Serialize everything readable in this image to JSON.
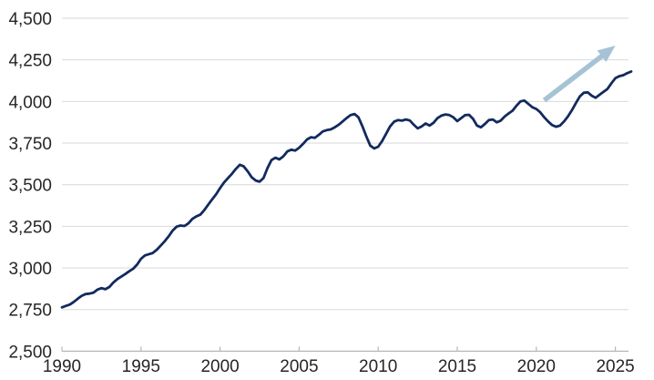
{
  "chart_data": {
    "type": "line",
    "title": "",
    "xlabel": "",
    "ylabel": "",
    "grid": "horizontal-gridlines",
    "legend": "none",
    "x_start": 1990,
    "x_step": 0.25,
    "x_end": 2026,
    "values": [
      2763,
      2772,
      2780,
      2796,
      2815,
      2833,
      2843,
      2846,
      2852,
      2870,
      2879,
      2872,
      2886,
      2912,
      2933,
      2948,
      2963,
      2980,
      2995,
      3020,
      3055,
      3075,
      3083,
      3090,
      3110,
      3135,
      3160,
      3190,
      3224,
      3248,
      3255,
      3252,
      3268,
      3295,
      3310,
      3320,
      3347,
      3380,
      3412,
      3443,
      3480,
      3513,
      3540,
      3565,
      3595,
      3620,
      3610,
      3580,
      3545,
      3525,
      3518,
      3540,
      3600,
      3648,
      3662,
      3652,
      3670,
      3700,
      3710,
      3705,
      3722,
      3745,
      3772,
      3785,
      3782,
      3800,
      3820,
      3828,
      3832,
      3845,
      3860,
      3880,
      3900,
      3918,
      3925,
      3905,
      3852,
      3790,
      3735,
      3718,
      3728,
      3762,
      3806,
      3850,
      3878,
      3888,
      3885,
      3892,
      3886,
      3860,
      3838,
      3850,
      3868,
      3855,
      3872,
      3900,
      3915,
      3922,
      3918,
      3905,
      3882,
      3900,
      3918,
      3920,
      3895,
      3855,
      3845,
      3865,
      3888,
      3892,
      3875,
      3885,
      3910,
      3928,
      3945,
      3975,
      4000,
      4005,
      3985,
      3965,
      3955,
      3935,
      3905,
      3880,
      3858,
      3848,
      3855,
      3880,
      3910,
      3948,
      3990,
      4030,
      4052,
      4055,
      4035,
      4022,
      4040,
      4058,
      4075,
      4110,
      4140,
      4152,
      4158,
      4170,
      4180
    ],
    "ylim": [
      2500,
      4500
    ],
    "xlim": [
      1990,
      2026.2
    ],
    "y_ticks": [
      2500,
      2750,
      3000,
      3250,
      3500,
      3750,
      4000,
      4250,
      4500
    ],
    "y_tick_labels": [
      "2,500",
      "2,750",
      "3,000",
      "3,250",
      "3,500",
      "3,750",
      "4,000",
      "4,250",
      "4,500"
    ],
    "x_ticks": [
      1990,
      1995,
      2000,
      2005,
      2010,
      2015,
      2020,
      2025
    ],
    "x_tick_labels": [
      "1990",
      "1995",
      "2000",
      "2005",
      "2010",
      "2015",
      "2020",
      "2025"
    ],
    "colors": {
      "line": "#122a5e",
      "arrow": "#a5c3d5",
      "gridline": "#d9d9d9",
      "axis": "#b7b7b7",
      "text": "#262626",
      "background": "#ffffff"
    },
    "annotations": [
      {
        "type": "arrow",
        "name": "upward-trend-arrow",
        "from": {
          "x": 2020.5,
          "y": 4007
        },
        "to": {
          "x": 2025.0,
          "y": 4335
        }
      }
    ]
  }
}
